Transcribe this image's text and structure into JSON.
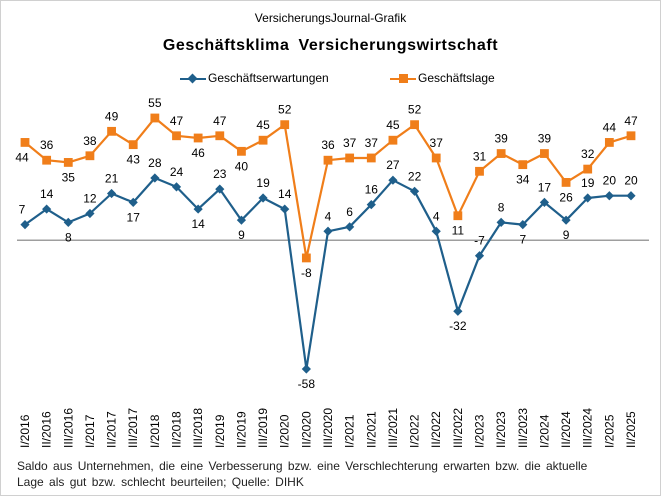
{
  "header": {
    "source": "VersicherungsJournal-Grafik",
    "title": "Geschäftsklima Versicherungswirtschaft"
  },
  "footnote": {
    "line1": "Saldo aus Unternehmen, die eine Verbesserung bzw. eine Verschlechterung erwarten bzw. die aktuelle",
    "line2": "Lage als gut bzw. schlecht beurteilen; Quelle: DIHK"
  },
  "chart_data": {
    "type": "line",
    "title": "Geschäftsklima Versicherungswirtschaft",
    "xlabel": "",
    "ylabel": "",
    "ylim": [
      -58,
      55
    ],
    "grid": false,
    "legend_position": "top",
    "x": [
      "I/2016",
      "II/2016",
      "III/2016",
      "I/2017",
      "II/2017",
      "III/2017",
      "I/2018",
      "II/2018",
      "III/2018",
      "I/2019",
      "II/2019",
      "III/2019",
      "I/2020",
      "II/2020",
      "III/2020",
      "I/2021",
      "II/2021",
      "III/2021",
      "I/2022",
      "II/2022",
      "III/2022",
      "I/2023",
      "II/2023",
      "III/2023",
      "I/2024",
      "II/2024",
      "III/2024",
      "I/2025",
      "II/2025"
    ],
    "series": [
      {
        "name": "Geschäftserwartungen",
        "color": "#1f5f8b",
        "marker": "diamond",
        "values": [
          7,
          14,
          8,
          12,
          21,
          17,
          28,
          24,
          14,
          23,
          9,
          19,
          14,
          -58,
          4,
          6,
          16,
          27,
          22,
          4,
          -32,
          -7,
          8,
          7,
          17,
          9,
          19,
          20,
          20
        ]
      },
      {
        "name": "Geschäftslage",
        "color": "#f07e1a",
        "marker": "square",
        "values": [
          44,
          36,
          35,
          38,
          49,
          43,
          55,
          47,
          46,
          47,
          40,
          45,
          52,
          -8,
          36,
          37,
          37,
          45,
          52,
          37,
          11,
          31,
          39,
          34,
          39,
          26,
          32,
          44,
          47
        ]
      }
    ]
  }
}
